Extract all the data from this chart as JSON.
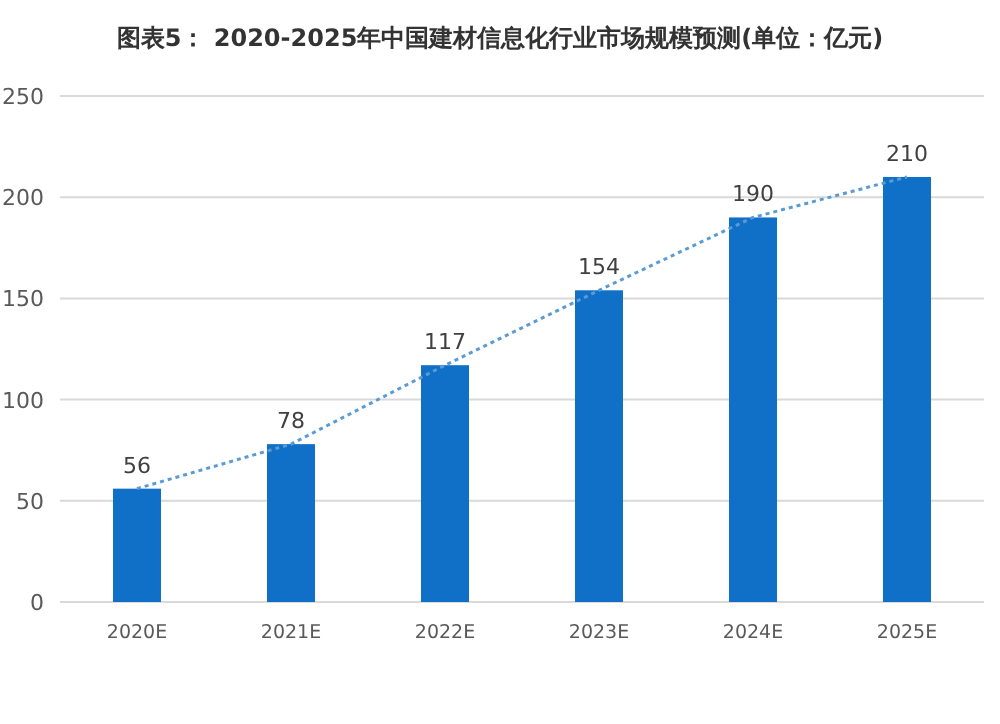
{
  "chart_data": {
    "type": "bar",
    "title": "图表5： 2020-2025年中国建材信息化行业市场规模预测(单位：亿元)",
    "categories": [
      "2020E",
      "2021E",
      "2022E",
      "2023E",
      "2024E",
      "2025E"
    ],
    "series": [
      {
        "color": "#1070c8",
        "values": [
          56,
          78,
          117,
          154,
          190,
          210
        ],
        "data_labels": true
      },
      {
        "type": "line",
        "color": "#5b9bd5",
        "line_style": "dotted",
        "values": [
          56,
          78,
          117,
          154,
          190,
          210
        ]
      }
    ],
    "ylim": [
      0,
      250
    ],
    "yticks": [
      0,
      50,
      100,
      150,
      200,
      250
    ],
    "grid": "y"
  }
}
